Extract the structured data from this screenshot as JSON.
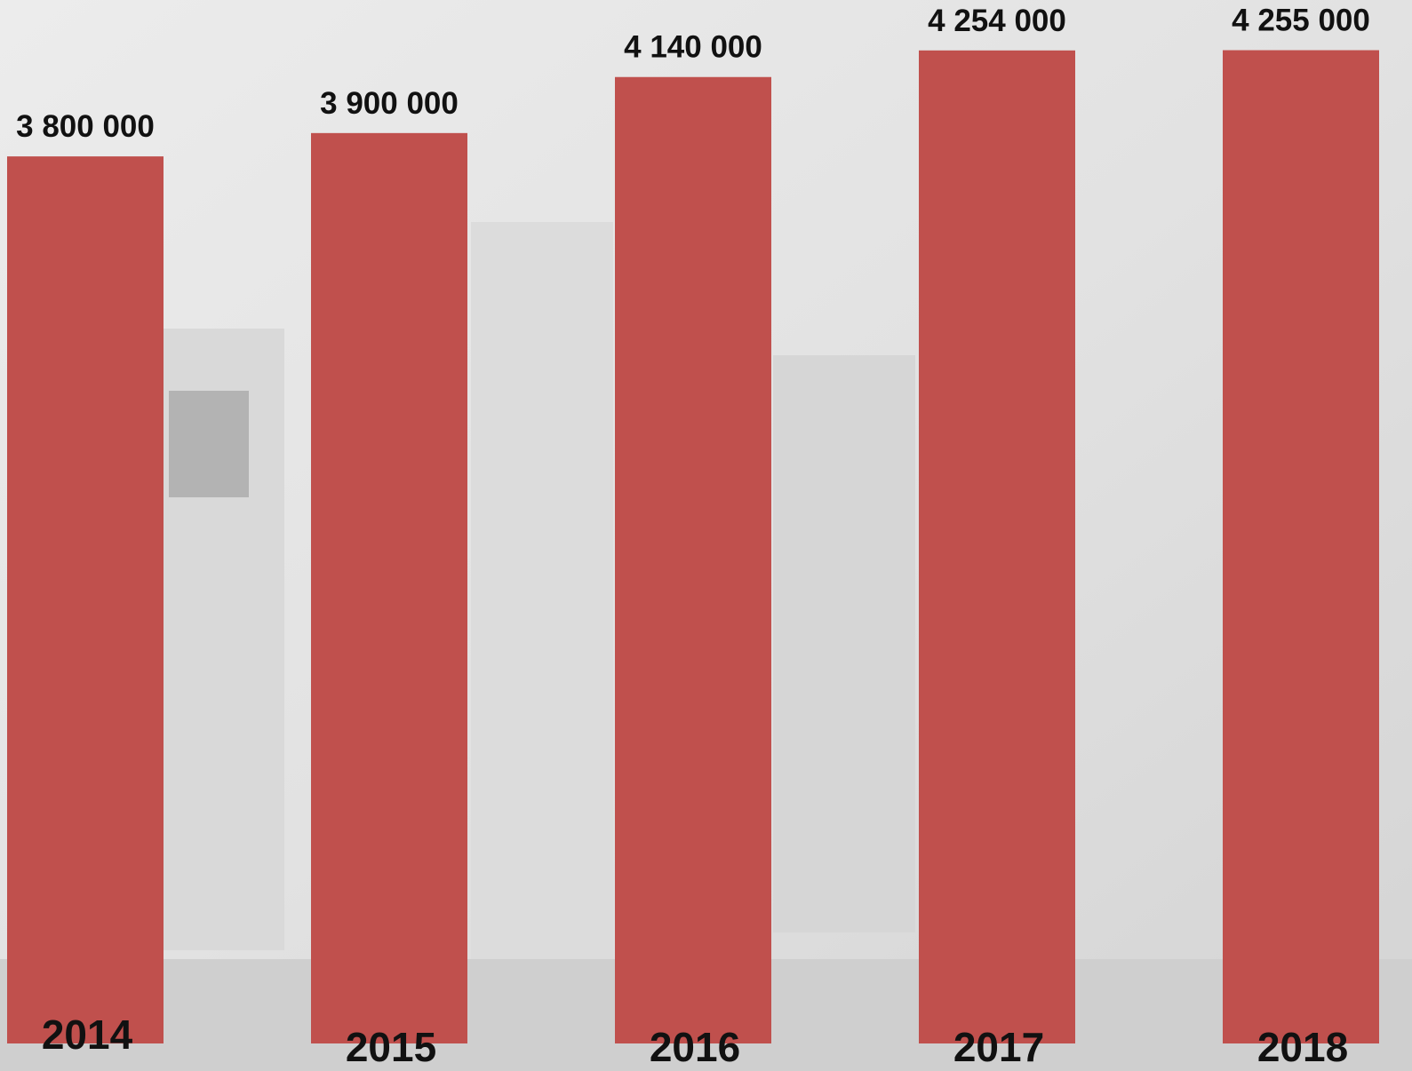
{
  "chart_data": {
    "type": "bar",
    "categories": [
      "2014",
      "2015",
      "2016",
      "2017",
      "2018"
    ],
    "values": [
      3800000,
      3900000,
      4140000,
      4254000,
      4255000
    ],
    "value_labels": [
      "3 800 000",
      "3 900 000",
      "4 140 000",
      "4 254 000",
      "4 255 000"
    ],
    "color": "#c0504d",
    "ylim": [
      0,
      4470000
    ],
    "grid": false
  }
}
